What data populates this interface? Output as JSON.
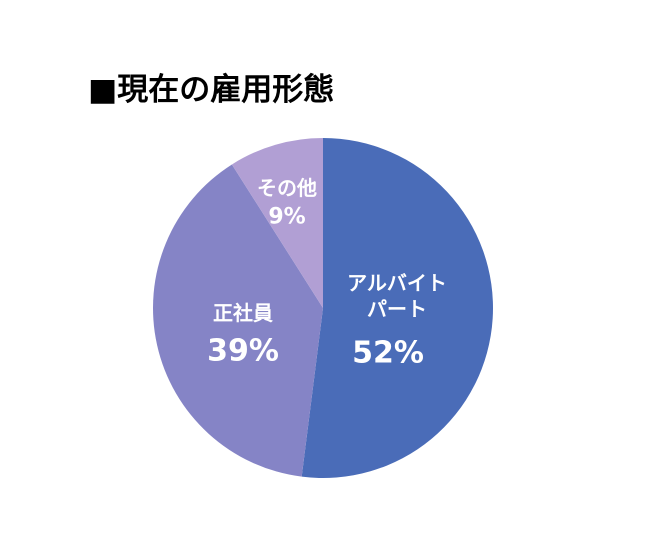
{
  "chart_data": {
    "type": "pie",
    "title": "■現在の雇用形態",
    "categories": [
      "アルバイト\nパート",
      "正社員",
      "その他"
    ],
    "values": [
      52,
      39,
      9
    ],
    "value_labels": [
      "52%",
      "39%",
      "9%"
    ],
    "colors": [
      "#4a6cb8",
      "#8584c6",
      "#b19fd4"
    ]
  }
}
